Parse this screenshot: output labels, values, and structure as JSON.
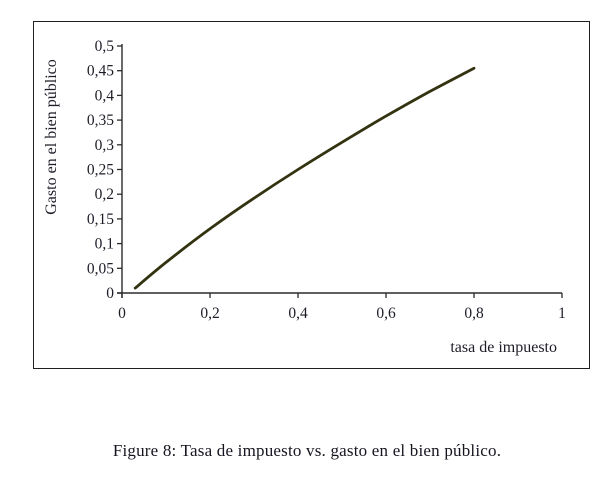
{
  "figure": {
    "caption": "Figure 8: Tasa de impuesto vs. gasto en el bien público."
  },
  "chart_data": {
    "type": "line",
    "title": "",
    "xlabel": "tasa de impuesto",
    "ylabel": "Gasto en el bien público",
    "xlim": [
      0,
      1
    ],
    "ylim": [
      0,
      0.5
    ],
    "x_ticks": [
      0,
      0.2,
      0.4,
      0.6,
      0.8,
      1
    ],
    "x_tick_labels": [
      "0",
      "0,2",
      "0,4",
      "0,6",
      "0,8",
      "1"
    ],
    "y_ticks": [
      0,
      0.05,
      0.1,
      0.15,
      0.2,
      0.25,
      0.3,
      0.35,
      0.4,
      0.45,
      0.5
    ],
    "y_tick_labels": [
      "0",
      "0,05",
      "0,1",
      "0,15",
      "0,2",
      "0,25",
      "0,3",
      "0,35",
      "0,4",
      "0,45",
      "0,5"
    ],
    "grid": false,
    "legend": "none",
    "series": [
      {
        "name": "gasto en el bien público",
        "color": "#333311",
        "x": [
          0.03,
          0.1,
          0.2,
          0.3,
          0.4,
          0.5,
          0.6,
          0.7,
          0.8
        ],
        "y": [
          0.01,
          0.062,
          0.13,
          0.192,
          0.25,
          0.305,
          0.358,
          0.408,
          0.455
        ]
      }
    ],
    "colors": {
      "axis": "#2b2b2b",
      "text": "#1d1d28",
      "curve": "#333311"
    }
  }
}
